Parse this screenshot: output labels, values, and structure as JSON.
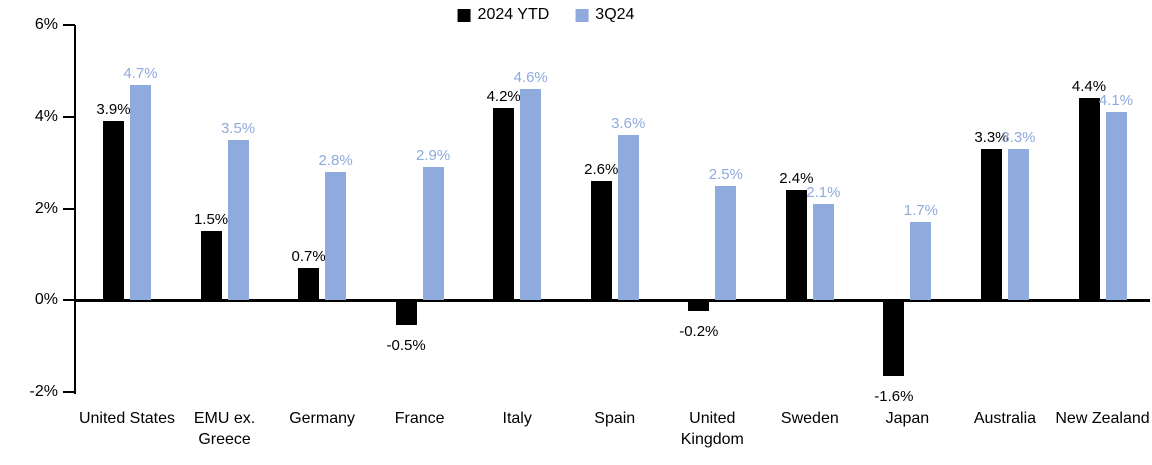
{
  "chart_data": {
    "type": "bar",
    "title": "",
    "xlabel": "",
    "ylabel": "",
    "categories": [
      "United States",
      "EMU ex. Greece",
      "Germany",
      "France",
      "Italy",
      "Spain",
      "United Kingdom",
      "Sweden",
      "Japan",
      "Australia",
      "New Zealand"
    ],
    "series": [
      {
        "name": "2024 YTD",
        "color": "#000000",
        "values": [
          3.9,
          1.5,
          0.7,
          -0.5,
          4.2,
          2.6,
          -0.2,
          2.4,
          -1.6,
          3.3,
          4.4
        ]
      },
      {
        "name": "3Q24",
        "color": "#8FAADC",
        "values": [
          4.7,
          3.5,
          2.8,
          2.9,
          4.6,
          3.6,
          2.5,
          2.1,
          1.7,
          3.3,
          4.1
        ]
      }
    ],
    "value_label_format": "0.0%",
    "y_axis": {
      "min": -2,
      "max": 6,
      "ticks": [
        {
          "label": "6%",
          "value": 6
        },
        {
          "label": "4%",
          "value": 4
        },
        {
          "label": "2%",
          "value": 2
        },
        {
          "label": "0%",
          "value": 0
        },
        {
          "label": "-2%",
          "value": -2
        }
      ]
    },
    "legend_position": "top-center",
    "grid": false,
    "background_color": "#ffffff"
  }
}
